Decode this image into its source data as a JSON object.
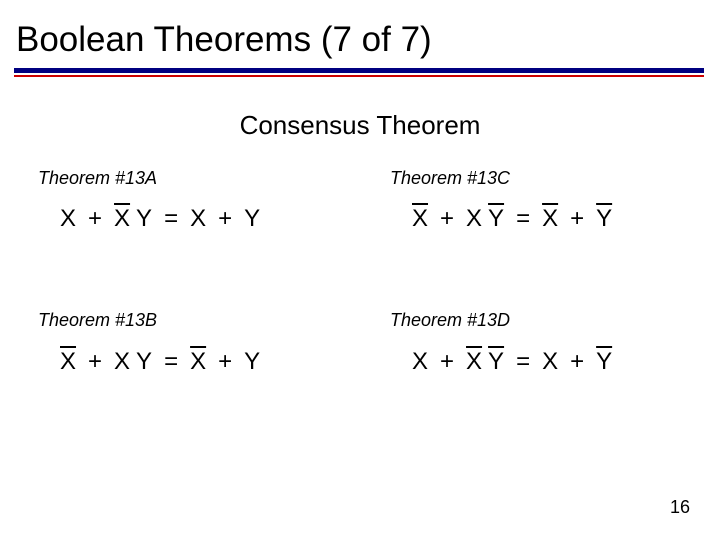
{
  "slide": {
    "title": "Boolean Theorems (7 of 7)",
    "subtitle": "Consensus Theorem",
    "page_number": "16",
    "rule_colors": {
      "primary": "#000080",
      "accent": "#cc0000"
    },
    "background_color": "#ffffff",
    "text_color": "#000000",
    "fonts": {
      "title_fontsize": 35,
      "subtitle_fontsize": 26,
      "label_fontsize": 18,
      "equation_fontsize": 24,
      "pagenum_fontsize": 18,
      "label_style": "italic"
    }
  },
  "theorems": {
    "a": {
      "label": "Theorem #13A",
      "lhs": [
        {
          "t": "X"
        },
        {
          "op": "+"
        },
        {
          "t": "X",
          "bar": true
        },
        {
          "sp": 1
        },
        {
          "t": "Y"
        }
      ],
      "rhs": [
        {
          "t": "X"
        },
        {
          "op": "+"
        },
        {
          "t": "Y"
        }
      ]
    },
    "c": {
      "label": "Theorem #13C",
      "lhs": [
        {
          "t": "X",
          "bar": true
        },
        {
          "op": "+"
        },
        {
          "t": "X"
        },
        {
          "sp": 1
        },
        {
          "t": "Y",
          "bar": true
        }
      ],
      "rhs": [
        {
          "t": "X",
          "bar": true
        },
        {
          "op": "+"
        },
        {
          "t": "Y",
          "bar": true
        }
      ]
    },
    "b": {
      "label": "Theorem #13B",
      "lhs": [
        {
          "t": "X",
          "bar": true
        },
        {
          "op": "+"
        },
        {
          "t": "X"
        },
        {
          "sp": 1
        },
        {
          "t": "Y"
        }
      ],
      "rhs": [
        {
          "t": "X",
          "bar": true
        },
        {
          "op": "+"
        },
        {
          "t": "Y"
        }
      ]
    },
    "d": {
      "label": "Theorem #13D",
      "lhs": [
        {
          "t": "X"
        },
        {
          "op": "+"
        },
        {
          "t": "X",
          "bar": true
        },
        {
          "sp": 1
        },
        {
          "t": "Y",
          "bar": true
        }
      ],
      "rhs": [
        {
          "t": "X"
        },
        {
          "op": "+"
        },
        {
          "t": "Y",
          "bar": true
        }
      ]
    }
  }
}
